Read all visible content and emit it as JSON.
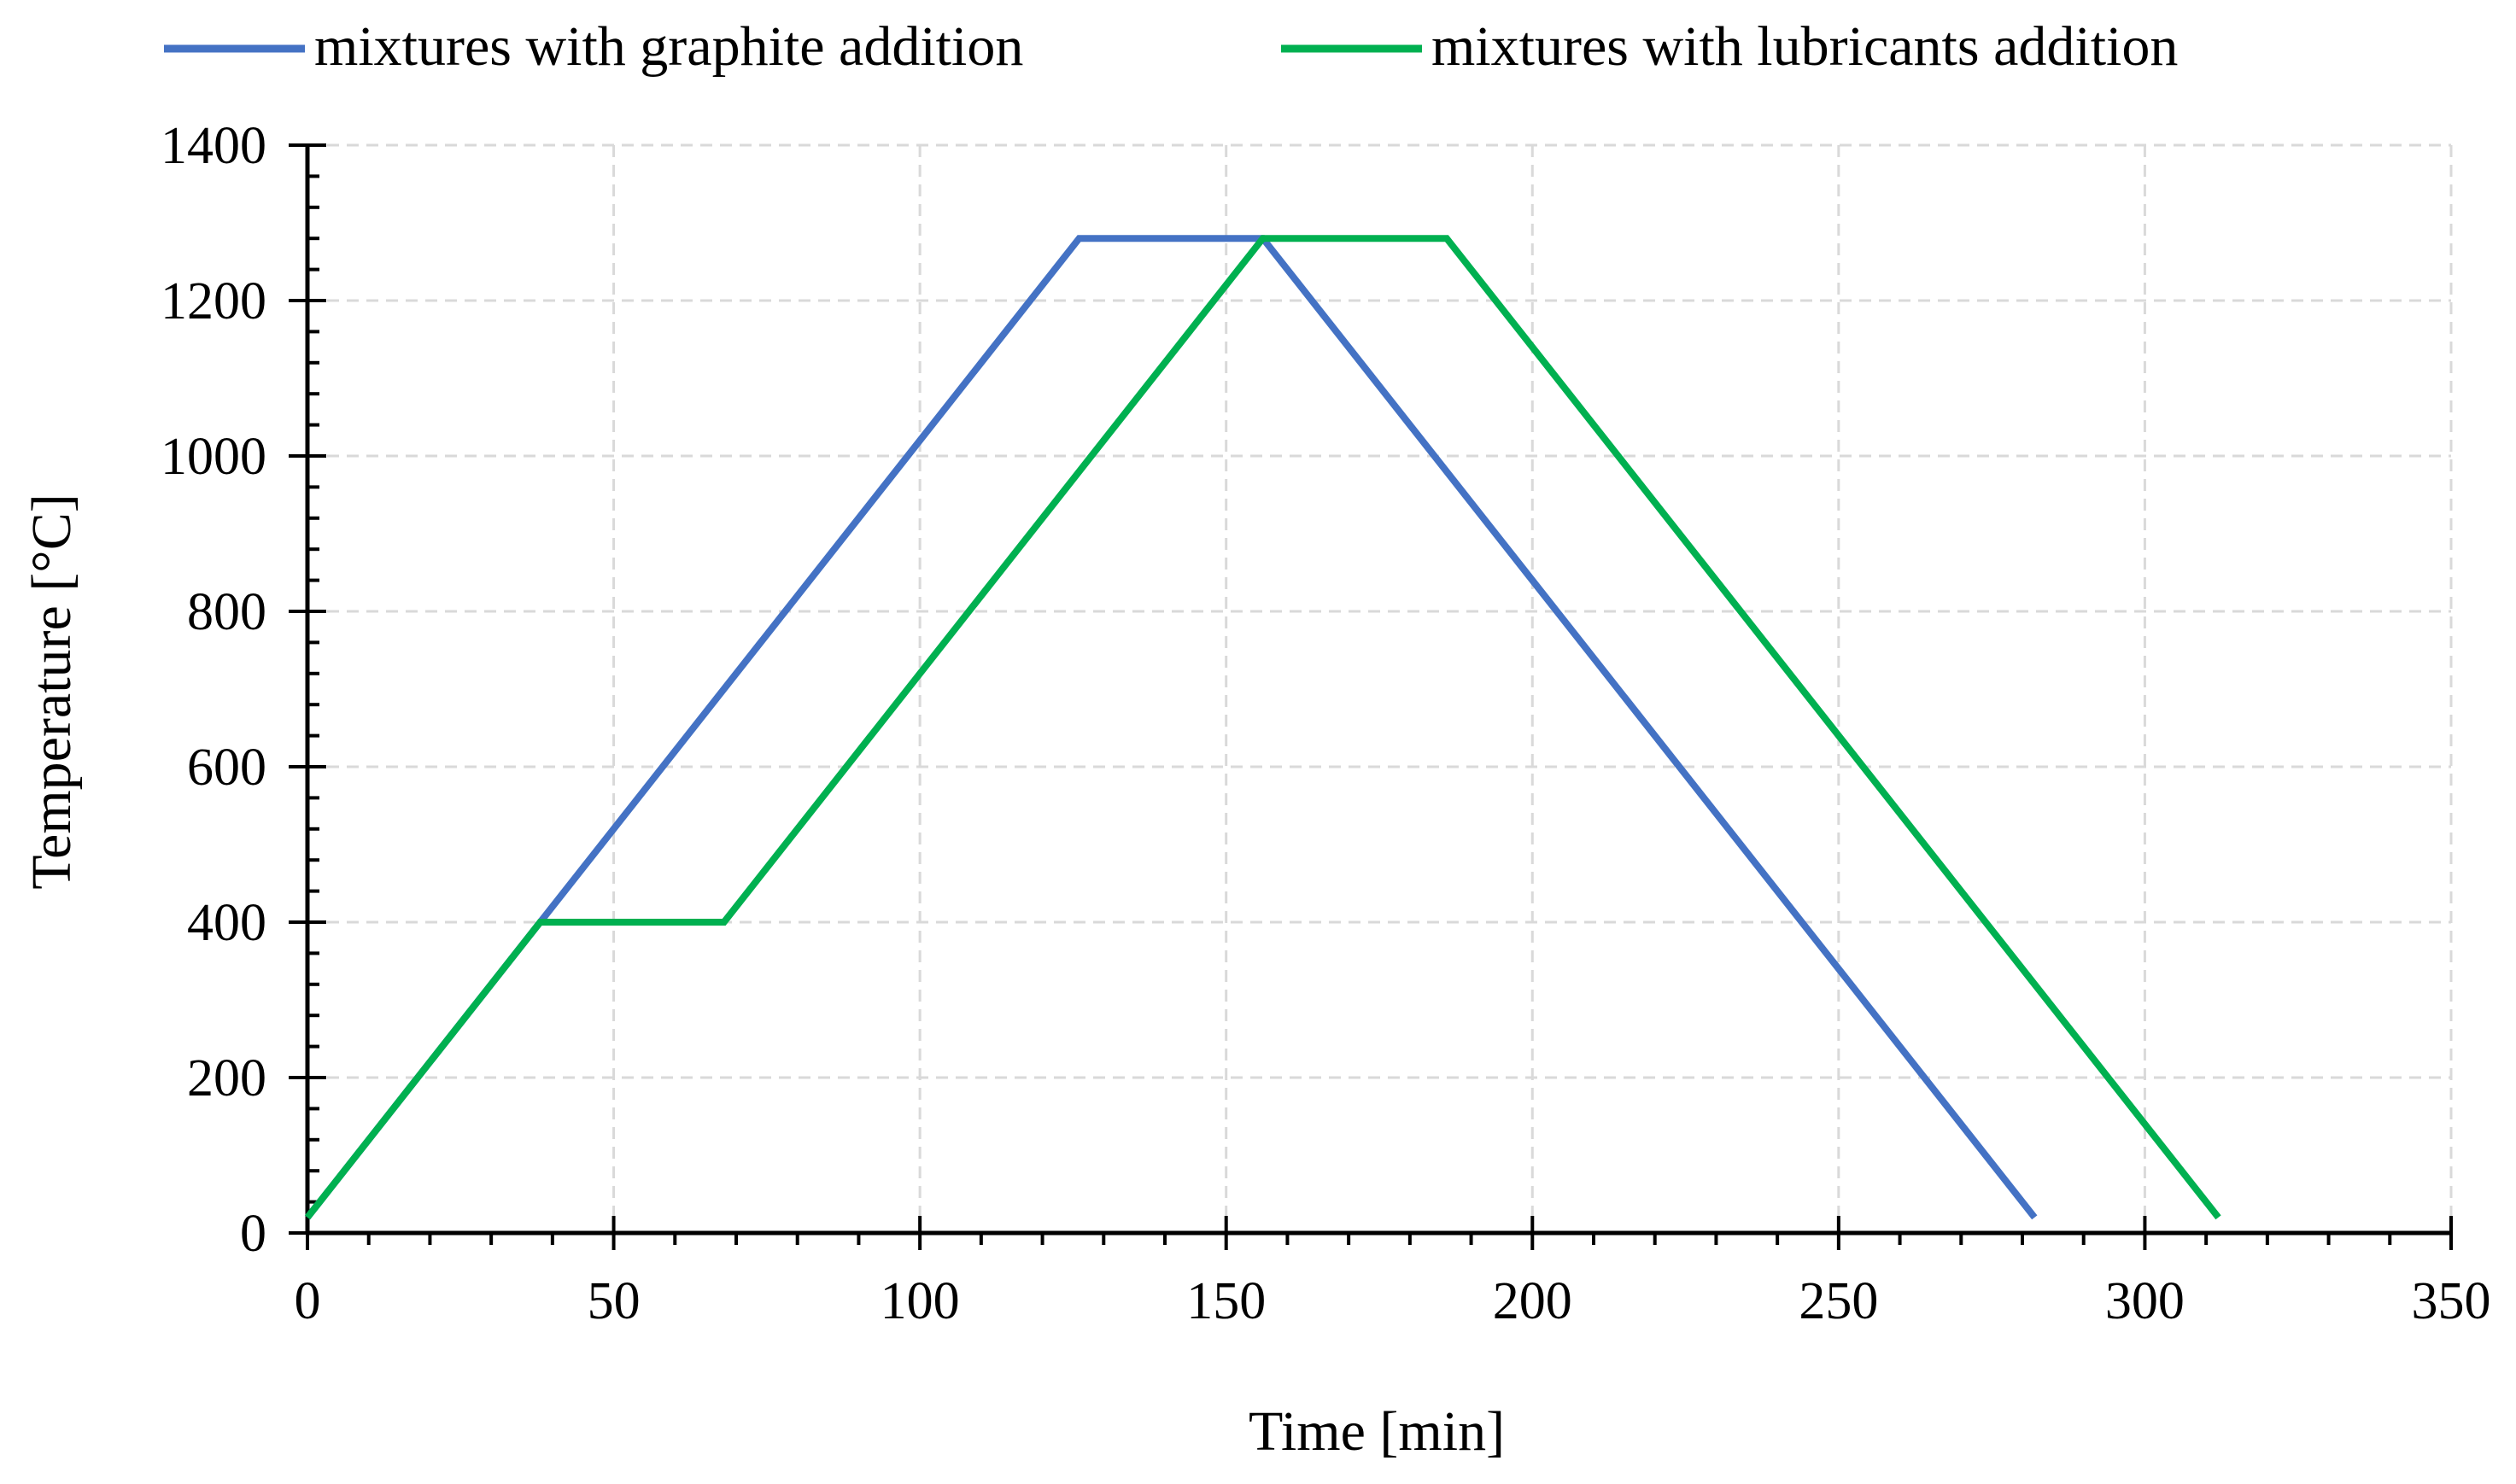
{
  "chart_data": {
    "type": "line",
    "xlabel": "Time [min]",
    "ylabel": "Temperature [°C]",
    "xlim": [
      0,
      350
    ],
    "ylim": [
      0,
      1400
    ],
    "x_ticks": [
      0,
      50,
      100,
      150,
      200,
      250,
      300,
      350
    ],
    "y_ticks": [
      0,
      200,
      400,
      600,
      800,
      1000,
      1200,
      1400
    ],
    "grid": true,
    "legend_position": "top",
    "series": [
      {
        "name": "mixtures with graphite addition",
        "color": "#4472c4",
        "points": [
          [
            0,
            20
          ],
          [
            38,
            400
          ],
          [
            126,
            1280
          ],
          [
            156,
            1280
          ],
          [
            282,
            20
          ]
        ]
      },
      {
        "name": "mixtures with lubricants addition",
        "color": "#00b050",
        "points": [
          [
            0,
            20
          ],
          [
            38,
            400
          ],
          [
            68,
            400
          ],
          [
            156,
            1280
          ],
          [
            186,
            1280
          ],
          [
            312,
            20
          ]
        ]
      }
    ]
  }
}
